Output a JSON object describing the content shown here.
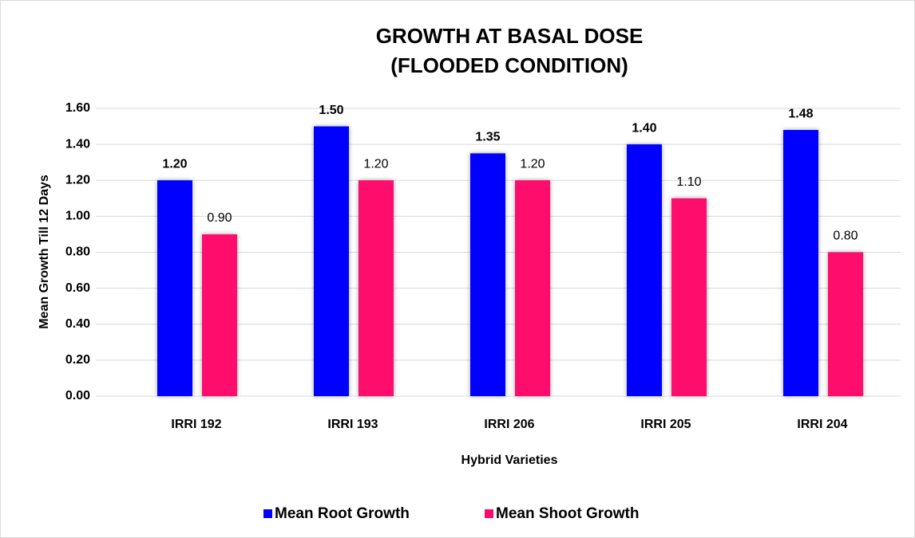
{
  "chart_data": {
    "type": "bar",
    "title": [
      "GROWTH AT BASAL DOSE",
      "(FLOODED CONDITION)"
    ],
    "x_label": "Hybrid Varieties",
    "y_label": "Mean Growth Till 12 Days",
    "categories": [
      "IRRI 192",
      "IRRI 193",
      "IRRI 206",
      "IRRI 205",
      "IRRI 204"
    ],
    "series": [
      {
        "name": "Mean Root Growth",
        "color": "#0000ff",
        "values": [
          1.2,
          1.5,
          1.35,
          1.4,
          1.48
        ],
        "value_labels": [
          "1.20",
          "1.50",
          "1.35",
          "1.40",
          "1.48"
        ]
      },
      {
        "name": "Mean Shoot Growth",
        "color": "#ff0a6c",
        "values": [
          0.9,
          1.2,
          1.2,
          1.1,
          0.8
        ],
        "value_labels": [
          "0.90",
          "1.20",
          "1.20",
          "1.10",
          "0.80"
        ]
      }
    ],
    "ylim": [
      0,
      1.6
    ],
    "yticks": [
      {
        "value": 0,
        "label": "0.00"
      },
      {
        "value": 0.2,
        "label": "0.20"
      },
      {
        "value": 0.4,
        "label": "0.40"
      },
      {
        "value": 0.6,
        "label": "0.60"
      },
      {
        "value": 0.8,
        "label": "0.80"
      },
      {
        "value": 1.0,
        "label": "1.00"
      },
      {
        "value": 1.2,
        "label": "1.20"
      },
      {
        "value": 1.4,
        "label": "1.40"
      },
      {
        "value": 1.6,
        "label": "1.60"
      }
    ],
    "grid": true,
    "legend": "bottom"
  }
}
